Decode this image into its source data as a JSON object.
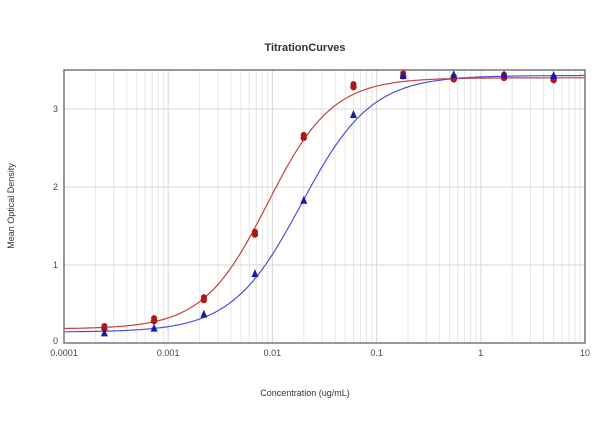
{
  "chart_data": {
    "type": "scatter",
    "title": "TitrationCurves",
    "xlabel": "Concentration (ug/mL)",
    "ylabel": "Mean Optical Density",
    "xscale": "log",
    "xlim": [
      0.0001,
      10
    ],
    "ylim": [
      0,
      3.5
    ],
    "xticks": [
      "0.0001",
      "0.001",
      "0.01",
      "0.1",
      "1",
      "10"
    ],
    "yticks": [
      "0",
      "1",
      "2",
      "3"
    ],
    "grid": true,
    "legend": null,
    "x": [
      0.000244,
      0.000732,
      0.0022,
      0.0068,
      0.02,
      0.06,
      0.18,
      0.55,
      1.67,
      5.0
    ],
    "series": [
      {
        "name": "Red series (circles)",
        "color": "#b01818",
        "curve_color": "#c84040",
        "marker": "circle",
        "values": [
          0.18,
          0.28,
          0.55,
          1.39,
          2.63,
          3.28,
          3.42,
          3.38,
          3.4,
          3.37
        ],
        "fit": {
          "bottom": 0.18,
          "top": 3.4,
          "ec50": 0.009,
          "hill": 1.4
        }
      },
      {
        "name": "Blue series (triangles)",
        "color": "#1a1aa8",
        "curve_color": "#5050d8",
        "marker": "triangle",
        "values": [
          0.13,
          0.19,
          0.37,
          0.89,
          1.83,
          2.93,
          3.43,
          3.44,
          3.44,
          3.43
        ],
        "fit": {
          "bottom": 0.14,
          "top": 3.43,
          "ec50": 0.019,
          "hill": 1.3
        }
      }
    ]
  }
}
